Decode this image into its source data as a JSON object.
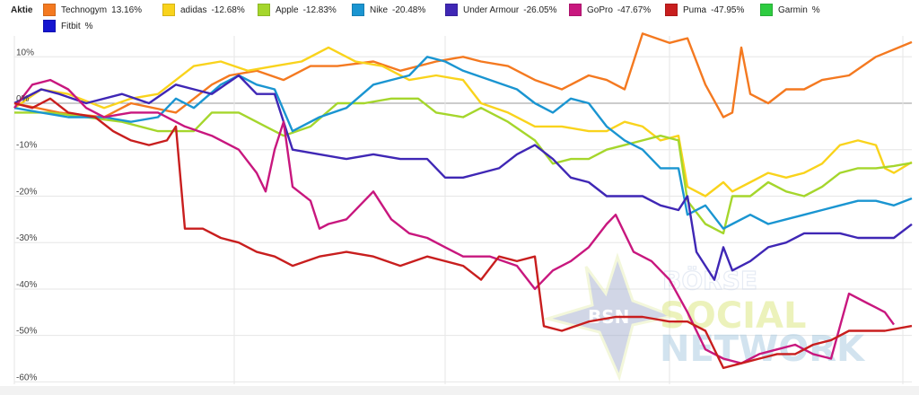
{
  "legend": {
    "title": "Aktie"
  },
  "watermark": {
    "initials": "BSN",
    "line1": "BÖRSE",
    "line2": "SOCIAL",
    "line3": "NETWORK"
  },
  "chart_data": {
    "type": "line",
    "ylim": [
      -60,
      15
    ],
    "xlim": [
      0,
      100
    ],
    "yticks": [
      10,
      0,
      -10,
      -20,
      -30,
      -40,
      -50,
      -60
    ],
    "ytick_labels": [
      "10%",
      "0%",
      "-10%",
      "-20%",
      "-30%",
      "-40%",
      "-50%",
      "-60%"
    ],
    "grid": true,
    "legend_position": "top-left",
    "series": [
      {
        "name": "Technogym",
        "value_label": "13.16%",
        "color": "#f47920",
        "points": [
          [
            0,
            0
          ],
          [
            5,
            -2
          ],
          [
            10,
            -3
          ],
          [
            13,
            0
          ],
          [
            18,
            -2
          ],
          [
            22,
            4
          ],
          [
            24,
            6
          ],
          [
            27,
            7
          ],
          [
            30,
            5
          ],
          [
            33,
            8
          ],
          [
            36,
            8
          ],
          [
            40,
            9
          ],
          [
            43,
            7
          ],
          [
            47,
            9
          ],
          [
            50,
            10
          ],
          [
            52,
            9
          ],
          [
            55,
            8
          ],
          [
            58,
            5
          ],
          [
            61,
            3
          ],
          [
            64,
            6
          ],
          [
            66,
            5
          ],
          [
            68,
            3
          ],
          [
            70,
            15
          ],
          [
            73,
            13
          ],
          [
            75,
            14
          ],
          [
            77,
            4
          ],
          [
            79,
            -3
          ],
          [
            80,
            -2
          ],
          [
            81,
            12
          ],
          [
            82,
            2
          ],
          [
            84,
            0
          ],
          [
            86,
            3
          ],
          [
            88,
            3
          ],
          [
            90,
            5
          ],
          [
            93,
            6
          ],
          [
            96,
            10
          ],
          [
            100,
            13.16
          ]
        ]
      },
      {
        "name": "adidas",
        "value_label": "-12.68%",
        "color": "#f9d31c",
        "points": [
          [
            0,
            -1
          ],
          [
            3,
            3
          ],
          [
            6,
            2
          ],
          [
            10,
            -1
          ],
          [
            13,
            1
          ],
          [
            16,
            2
          ],
          [
            20,
            8
          ],
          [
            23,
            9
          ],
          [
            26,
            7
          ],
          [
            29,
            8
          ],
          [
            32,
            9
          ],
          [
            35,
            12
          ],
          [
            38,
            9
          ],
          [
            41,
            8
          ],
          [
            44,
            5
          ],
          [
            47,
            6
          ],
          [
            50,
            5
          ],
          [
            52,
            0
          ],
          [
            55,
            -2
          ],
          [
            58,
            -5
          ],
          [
            61,
            -5
          ],
          [
            64,
            -6
          ],
          [
            66,
            -6
          ],
          [
            68,
            -4
          ],
          [
            70,
            -5
          ],
          [
            72,
            -8
          ],
          [
            74,
            -7
          ],
          [
            75,
            -18
          ],
          [
            77,
            -20
          ],
          [
            79,
            -17
          ],
          [
            80,
            -19
          ],
          [
            82,
            -17
          ],
          [
            84,
            -15
          ],
          [
            86,
            -16
          ],
          [
            88,
            -15
          ],
          [
            90,
            -13
          ],
          [
            92,
            -9
          ],
          [
            94,
            -8
          ],
          [
            96,
            -9
          ],
          [
            97,
            -14
          ],
          [
            98,
            -15
          ],
          [
            100,
            -12.68
          ]
        ]
      },
      {
        "name": "Apple",
        "value_label": "-12.83%",
        "color": "#a5d62c",
        "points": [
          [
            0,
            -2
          ],
          [
            4,
            -2
          ],
          [
            8,
            -3
          ],
          [
            12,
            -4
          ],
          [
            16,
            -6
          ],
          [
            20,
            -6
          ],
          [
            22,
            -2
          ],
          [
            25,
            -2
          ],
          [
            28,
            -5
          ],
          [
            30,
            -7
          ],
          [
            33,
            -5
          ],
          [
            36,
            0
          ],
          [
            39,
            0
          ],
          [
            42,
            1
          ],
          [
            45,
            1
          ],
          [
            47,
            -2
          ],
          [
            50,
            -3
          ],
          [
            52,
            -1
          ],
          [
            55,
            -4
          ],
          [
            58,
            -8
          ],
          [
            60,
            -13
          ],
          [
            62,
            -12
          ],
          [
            64,
            -12
          ],
          [
            66,
            -10
          ],
          [
            68,
            -9
          ],
          [
            70,
            -8
          ],
          [
            72,
            -7
          ],
          [
            74,
            -8
          ],
          [
            75,
            -21
          ],
          [
            77,
            -26
          ],
          [
            79,
            -28
          ],
          [
            80,
            -20
          ],
          [
            82,
            -20
          ],
          [
            84,
            -17
          ],
          [
            86,
            -19
          ],
          [
            88,
            -20
          ],
          [
            90,
            -18
          ],
          [
            92,
            -15
          ],
          [
            94,
            -14
          ],
          [
            96,
            -14
          ],
          [
            98,
            -13.5
          ],
          [
            100,
            -12.83
          ]
        ]
      },
      {
        "name": "Nike",
        "value_label": "-20.48%",
        "color": "#1a95d1",
        "points": [
          [
            0,
            -1
          ],
          [
            3,
            -2
          ],
          [
            6,
            -3
          ],
          [
            10,
            -3
          ],
          [
            13,
            -4
          ],
          [
            16,
            -3
          ],
          [
            18,
            1
          ],
          [
            20,
            -1
          ],
          [
            23,
            4
          ],
          [
            25,
            6
          ],
          [
            27,
            4
          ],
          [
            29,
            3
          ],
          [
            31,
            -6
          ],
          [
            34,
            -3
          ],
          [
            37,
            -1
          ],
          [
            40,
            4
          ],
          [
            42,
            5
          ],
          [
            44,
            6
          ],
          [
            46,
            10
          ],
          [
            48,
            9
          ],
          [
            50,
            7
          ],
          [
            53,
            5
          ],
          [
            56,
            3
          ],
          [
            58,
            0
          ],
          [
            60,
            -2
          ],
          [
            62,
            1
          ],
          [
            64,
            0
          ],
          [
            66,
            -5
          ],
          [
            68,
            -8
          ],
          [
            70,
            -10
          ],
          [
            72,
            -14
          ],
          [
            74,
            -14
          ],
          [
            75,
            -24
          ],
          [
            77,
            -22
          ],
          [
            79,
            -27
          ],
          [
            80,
            -26
          ],
          [
            82,
            -24
          ],
          [
            84,
            -26
          ],
          [
            86,
            -25
          ],
          [
            88,
            -24
          ],
          [
            90,
            -23
          ],
          [
            92,
            -22
          ],
          [
            94,
            -21
          ],
          [
            96,
            -21
          ],
          [
            98,
            -22
          ],
          [
            100,
            -20.48
          ]
        ]
      },
      {
        "name": "Under Armour",
        "value_label": "-26.05%",
        "color": "#3f27b5",
        "points": [
          [
            0,
            0
          ],
          [
            3,
            3
          ],
          [
            5,
            2
          ],
          [
            8,
            0
          ],
          [
            12,
            2
          ],
          [
            15,
            0
          ],
          [
            18,
            4
          ],
          [
            20,
            3
          ],
          [
            22,
            2
          ],
          [
            25,
            6
          ],
          [
            27,
            2
          ],
          [
            29,
            2
          ],
          [
            31,
            -10
          ],
          [
            34,
            -11
          ],
          [
            37,
            -12
          ],
          [
            40,
            -11
          ],
          [
            43,
            -12
          ],
          [
            46,
            -12
          ],
          [
            48,
            -16
          ],
          [
            50,
            -16
          ],
          [
            52,
            -15
          ],
          [
            54,
            -14
          ],
          [
            56,
            -11
          ],
          [
            58,
            -9
          ],
          [
            60,
            -12
          ],
          [
            62,
            -16
          ],
          [
            64,
            -17
          ],
          [
            66,
            -20
          ],
          [
            68,
            -20
          ],
          [
            70,
            -20
          ],
          [
            72,
            -22
          ],
          [
            74,
            -23
          ],
          [
            75,
            -20
          ],
          [
            76,
            -32
          ],
          [
            78,
            -38
          ],
          [
            79,
            -31
          ],
          [
            80,
            -36
          ],
          [
            82,
            -34
          ],
          [
            84,
            -31
          ],
          [
            86,
            -30
          ],
          [
            88,
            -28
          ],
          [
            90,
            -28
          ],
          [
            92,
            -28
          ],
          [
            94,
            -29
          ],
          [
            96,
            -29
          ],
          [
            98,
            -29
          ],
          [
            100,
            -26.05
          ]
        ]
      },
      {
        "name": "GoPro",
        "value_label": "-47.67%",
        "color": "#c8177e",
        "points": [
          [
            0,
            -1
          ],
          [
            2,
            4
          ],
          [
            4,
            5
          ],
          [
            6,
            3
          ],
          [
            8,
            -1
          ],
          [
            10,
            -3
          ],
          [
            13,
            -2
          ],
          [
            16,
            -2
          ],
          [
            19,
            -5
          ],
          [
            22,
            -7
          ],
          [
            25,
            -10
          ],
          [
            27,
            -15
          ],
          [
            28,
            -19
          ],
          [
            29,
            -10
          ],
          [
            30,
            -4
          ],
          [
            31,
            -18
          ],
          [
            33,
            -21
          ],
          [
            34,
            -27
          ],
          [
            35,
            -26
          ],
          [
            37,
            -25
          ],
          [
            40,
            -19
          ],
          [
            42,
            -25
          ],
          [
            44,
            -28
          ],
          [
            46,
            -29
          ],
          [
            48,
            -31
          ],
          [
            50,
            -33
          ],
          [
            53,
            -33
          ],
          [
            56,
            -35
          ],
          [
            58,
            -40
          ],
          [
            60,
            -36
          ],
          [
            62,
            -34
          ],
          [
            64,
            -31
          ],
          [
            66,
            -26
          ],
          [
            67,
            -24
          ],
          [
            69,
            -32
          ],
          [
            71,
            -34
          ],
          [
            73,
            -38
          ],
          [
            75,
            -45
          ],
          [
            77,
            -53
          ],
          [
            79,
            -55
          ],
          [
            81,
            -56
          ],
          [
            83,
            -54
          ],
          [
            85,
            -53
          ],
          [
            87,
            -52
          ],
          [
            89,
            -54
          ],
          [
            91,
            -55
          ],
          [
            93,
            -41
          ],
          [
            95,
            -43
          ],
          [
            96,
            -44
          ],
          [
            97,
            -45
          ],
          [
            98,
            -47.67
          ]
        ]
      },
      {
        "name": "Puma",
        "value_label": "-47.95%",
        "color": "#c81e1e",
        "points": [
          [
            0,
            0
          ],
          [
            2,
            -1
          ],
          [
            4,
            1
          ],
          [
            6,
            -2
          ],
          [
            9,
            -3
          ],
          [
            11,
            -6
          ],
          [
            13,
            -8
          ],
          [
            15,
            -9
          ],
          [
            17,
            -8
          ],
          [
            18,
            -5
          ],
          [
            19,
            -27
          ],
          [
            21,
            -27
          ],
          [
            23,
            -29
          ],
          [
            25,
            -30
          ],
          [
            27,
            -32
          ],
          [
            29,
            -33
          ],
          [
            31,
            -35
          ],
          [
            34,
            -33
          ],
          [
            37,
            -32
          ],
          [
            40,
            -33
          ],
          [
            43,
            -35
          ],
          [
            46,
            -33
          ],
          [
            48,
            -34
          ],
          [
            50,
            -35
          ],
          [
            52,
            -38
          ],
          [
            54,
            -33
          ],
          [
            56,
            -34
          ],
          [
            58,
            -33
          ],
          [
            59,
            -48
          ],
          [
            61,
            -49
          ],
          [
            64,
            -47
          ],
          [
            67,
            -46
          ],
          [
            70,
            -46
          ],
          [
            73,
            -47
          ],
          [
            75,
            -47
          ],
          [
            77,
            -49
          ],
          [
            79,
            -57
          ],
          [
            81,
            -56
          ],
          [
            83,
            -55
          ],
          [
            85,
            -54
          ],
          [
            87,
            -54
          ],
          [
            89,
            -52
          ],
          [
            91,
            -51
          ],
          [
            93,
            -49
          ],
          [
            95,
            -49
          ],
          [
            97,
            -49
          ],
          [
            100,
            -47.95
          ]
        ]
      },
      {
        "name": "Garmin",
        "value_label": "%",
        "color": "#2ecc40",
        "points": []
      },
      {
        "name": "Fitbit",
        "value_label": "%",
        "color": "#1515d0",
        "points": []
      }
    ]
  }
}
